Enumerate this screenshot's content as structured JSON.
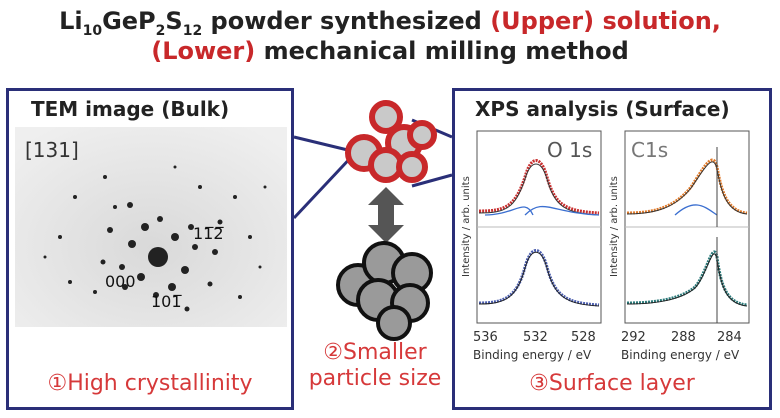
{
  "title": {
    "line1_prefix": "Li",
    "line1_sub1": "10",
    "line1_mid1": "GeP",
    "line1_sub2": "2",
    "line1_mid2": "S",
    "line1_sub3": "12",
    "line1_mid3": " powder synthesized ",
    "line1_highlight": "(Upper) solution,",
    "line2": "(Lower) mechanical milling method"
  },
  "tem": {
    "title": "TEM image (Bulk)",
    "zone_axis": "[131]",
    "spot_112": "11̅2̅",
    "spot_000": "000",
    "spot_101": "101̅",
    "caption": "①High crystallinity"
  },
  "middle": {
    "caption_line1": "②Smaller",
    "caption_line2": "particle size"
  },
  "xps": {
    "title": "XPS analysis (Surface)",
    "label_o1s": "O 1s",
    "label_c1s": "C1s",
    "ylabel": "Intensity / arb. units",
    "xticks_o": [
      "536",
      "532",
      "528"
    ],
    "xticks_c": [
      "292",
      "288",
      "284"
    ],
    "xlabel": "Binding energy / eV",
    "caption": "③Surface layer"
  },
  "colors": {
    "panel_border": "#2a2f78",
    "accent_red": "#c8282a",
    "caption_red": "#d6393a"
  }
}
